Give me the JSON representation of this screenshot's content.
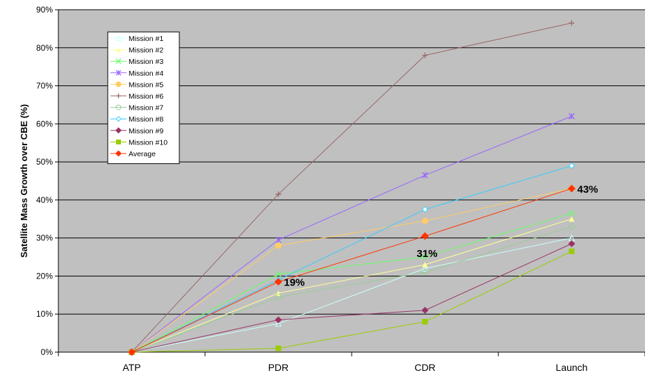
{
  "chart_data": {
    "type": "line",
    "title": "",
    "xlabel": "",
    "ylabel": "Satellite Mass Growth over CBE (%)",
    "categories": [
      "ATP",
      "PDR",
      "CDR",
      "Launch"
    ],
    "ylim": [
      0,
      90
    ],
    "y_ticks": [
      "0%",
      "10%",
      "20%",
      "30%",
      "40%",
      "50%",
      "60%",
      "70%",
      "80%",
      "90%"
    ],
    "grid": true,
    "legend_position": "top-left",
    "series": [
      {
        "name": "Mission  #1",
        "values": [
          0,
          7.5,
          22,
          30
        ],
        "color": "#ccffff",
        "marker": "triangle-open"
      },
      {
        "name": "Mission  #2",
        "values": [
          0,
          15.5,
          23,
          35
        ],
        "color": "#ffff99",
        "marker": "triangle"
      },
      {
        "name": "Mission  #3",
        "values": [
          0,
          20.5,
          25,
          36.5
        ],
        "color": "#66ff66",
        "marker": "x"
      },
      {
        "name": "Mission  #4",
        "values": [
          0,
          29.5,
          46.5,
          62
        ],
        "color": "#9966ff",
        "marker": "star"
      },
      {
        "name": "Mission  #5",
        "values": [
          0,
          28,
          34.5,
          43
        ],
        "color": "#ffcc66",
        "marker": "circle"
      },
      {
        "name": "Mission  #6",
        "values": [
          0,
          41.5,
          78,
          86.5
        ],
        "color": "#996666",
        "marker": "plus"
      },
      {
        "name": "Mission  #7",
        "values": [
          0,
          14.5,
          21,
          33
        ],
        "color": "#99cc99",
        "marker": "circle-open"
      },
      {
        "name": "Mission  #8",
        "values": [
          0,
          19,
          37.5,
          49
        ],
        "color": "#33ccff",
        "marker": "diamond-open"
      },
      {
        "name": "Mission  #9",
        "values": [
          0,
          8.5,
          11,
          28.5
        ],
        "color": "#993366",
        "marker": "diamond"
      },
      {
        "name": "Mission  #10",
        "values": [
          0,
          1,
          8,
          26.5
        ],
        "color": "#99cc00",
        "marker": "square"
      },
      {
        "name": "Average",
        "values": [
          0,
          18.5,
          30.5,
          43
        ],
        "color": "#ff3300",
        "marker": "diamond"
      }
    ],
    "annotations": [
      {
        "text": "19%",
        "category": "PDR",
        "value": 18.5
      },
      {
        "text": "31%",
        "category": "CDR",
        "value": 30.5
      },
      {
        "text": "43%",
        "category": "Launch",
        "value": 43
      }
    ]
  }
}
